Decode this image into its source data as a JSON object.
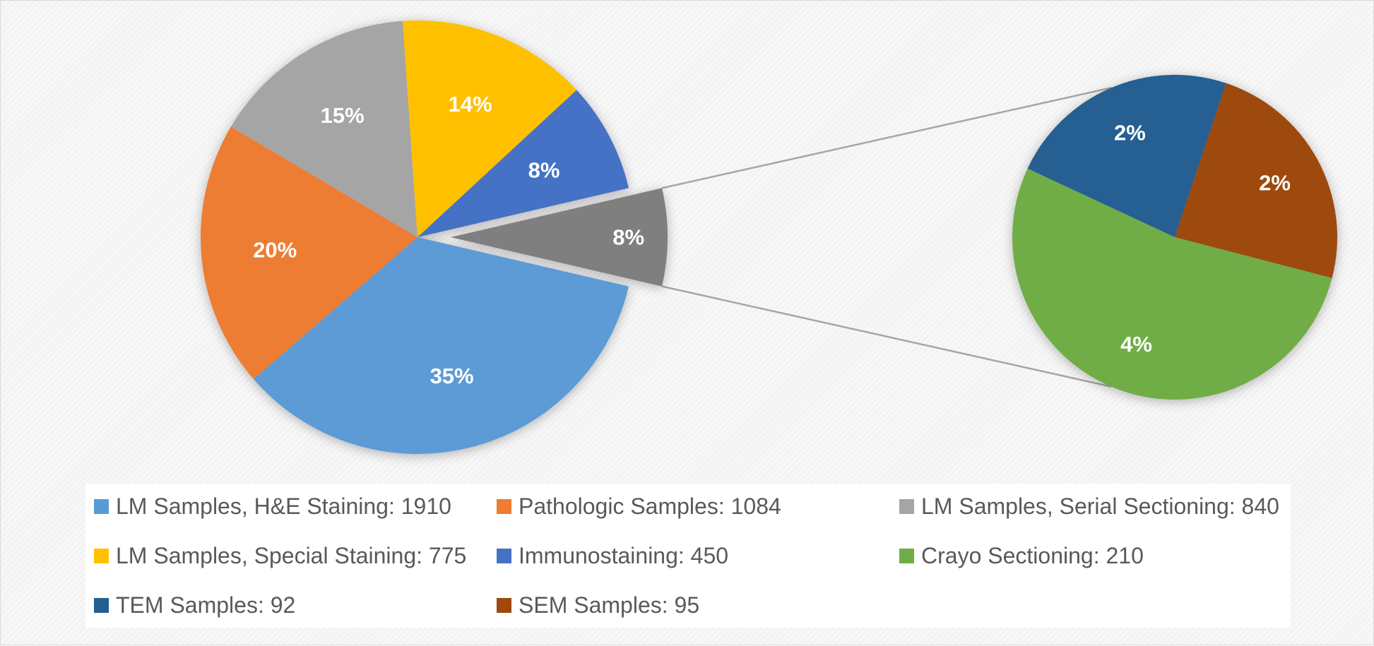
{
  "chart_data": {
    "type": "bar-of-pie",
    "series": [
      {
        "name": "LM Samples, H&E Staining",
        "value": 1910,
        "percent_label": "35%",
        "color": "#5b9bd5",
        "part": "main"
      },
      {
        "name": "Pathologic Samples",
        "value": 1084,
        "percent_label": "20%",
        "color": "#ed7d31",
        "part": "main"
      },
      {
        "name": "LM Samples, Serial Sectioning",
        "value": 840,
        "percent_label": "15%",
        "color": "#a5a5a5",
        "part": "main"
      },
      {
        "name": "LM Samples, Special Staining",
        "value": 775,
        "percent_label": "14%",
        "color": "#ffc000",
        "part": "main"
      },
      {
        "name": "Immunostaining",
        "value": 450,
        "percent_label": "8%",
        "color": "#4472c4",
        "part": "main"
      },
      {
        "name": "Crayo Sectioning",
        "value": 210,
        "percent_label": "4%",
        "color": "#70ad47",
        "part": "secondary"
      },
      {
        "name": "TEM Samples",
        "value": 92,
        "percent_label": "2%",
        "color": "#255e91",
        "part": "secondary"
      },
      {
        "name": "SEM Samples",
        "value": 95,
        "percent_label": "2%",
        "color": "#9e480e",
        "part": "secondary"
      }
    ],
    "other_slice": {
      "percent_label": "8%",
      "color": "#7f7f7f"
    },
    "legend_position": "bottom"
  },
  "legend": [
    {
      "text": "LM Samples, H&E Staining: 1910",
      "color": "#5b9bd5"
    },
    {
      "text": "Pathologic Samples: 1084",
      "color": "#ed7d31"
    },
    {
      "text": "LM Samples, Serial Sectioning: 840",
      "color": "#a5a5a5"
    },
    {
      "text": "LM Samples, Special Staining: 775",
      "color": "#ffc000"
    },
    {
      "text": "Immunostaining: 450",
      "color": "#4472c4"
    },
    {
      "text": "Crayo Sectioning: 210",
      "color": "#70ad47"
    },
    {
      "text": "TEM Samples: 92",
      "color": "#255e91"
    },
    {
      "text": "SEM Samples: 95",
      "color": "#9e480e"
    }
  ]
}
